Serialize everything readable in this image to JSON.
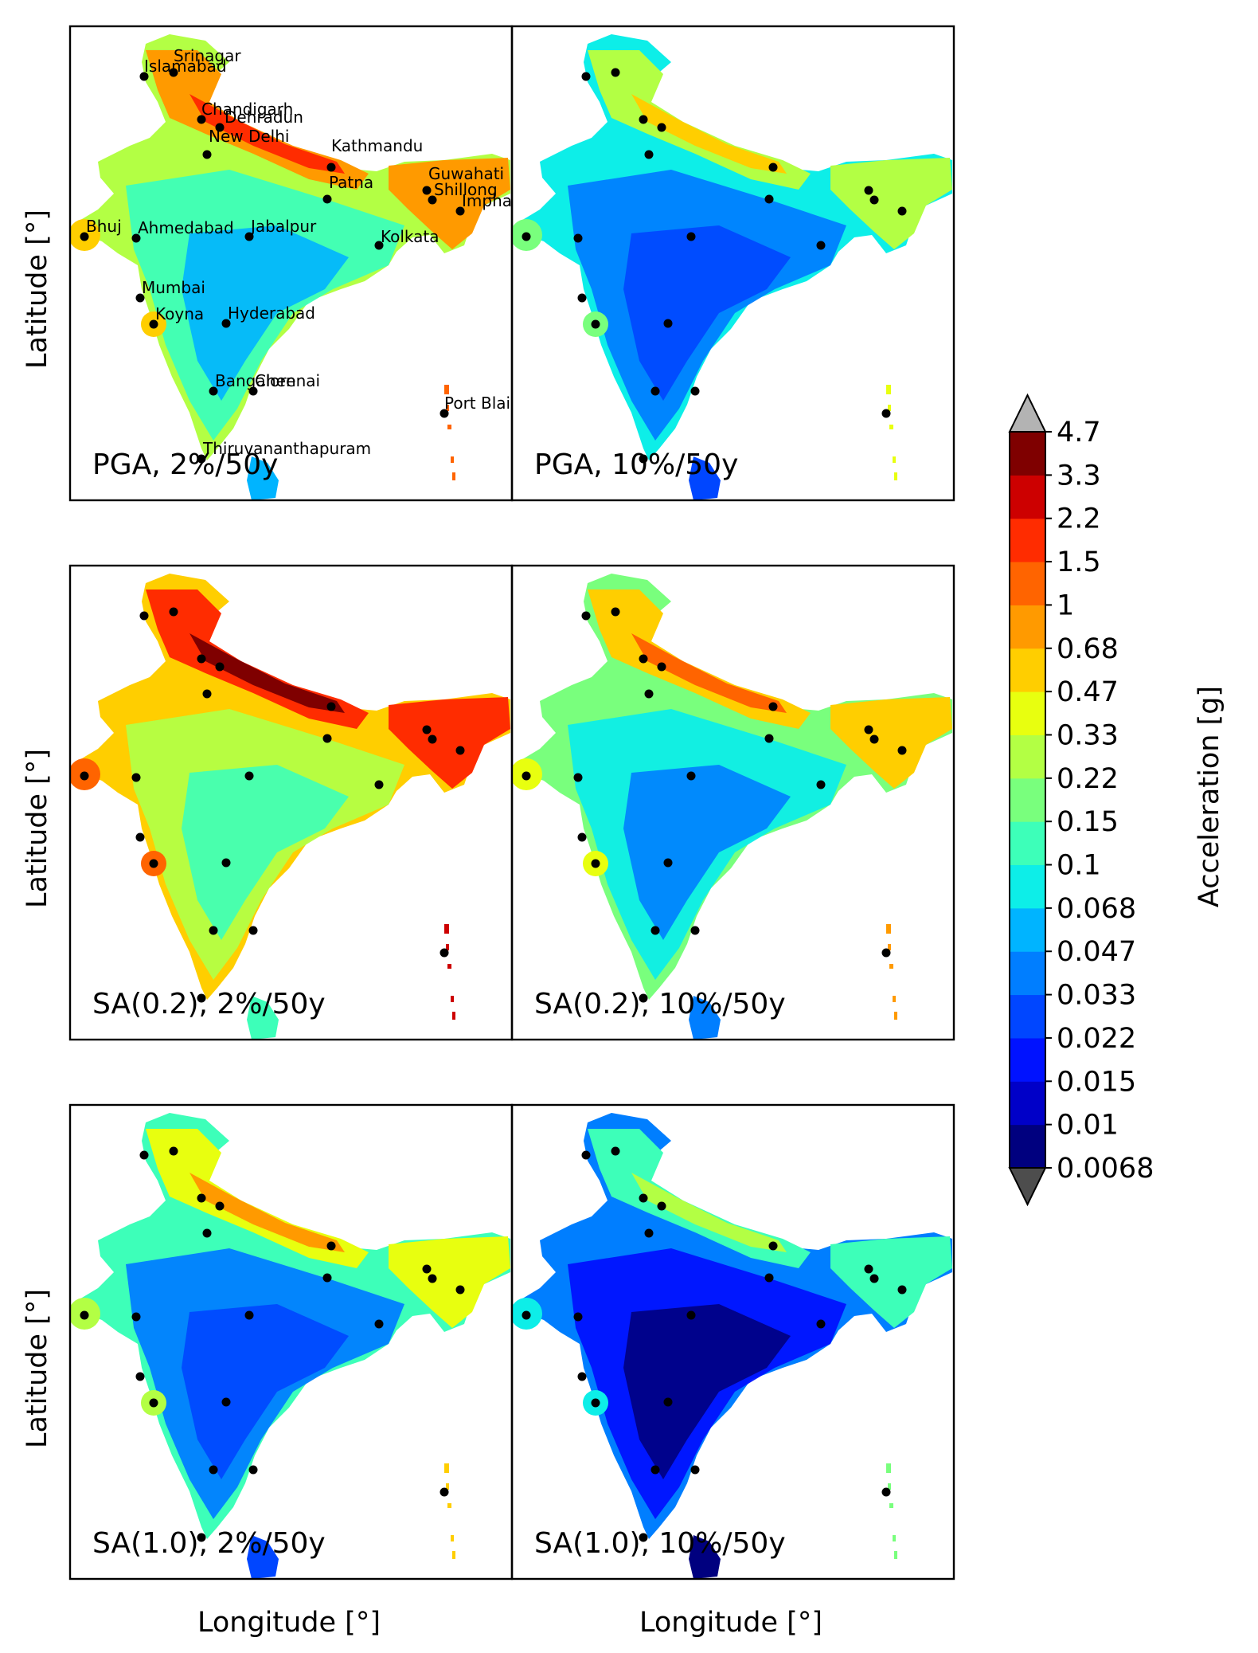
{
  "chart_data": {
    "type": "heatmap",
    "description_scale": "discrete",
    "xlabel": "Longitude [°]",
    "ylabel": "Latitude [°]",
    "colorbar": {
      "label": "Acceleration [g]",
      "levels": [
        "0.0068",
        "0.01",
        "0.015",
        "0.022",
        "0.033",
        "0.047",
        "0.068",
        "0.1",
        "0.15",
        "0.22",
        "0.33",
        "0.47",
        "0.68",
        "1",
        "1.5",
        "2.2",
        "3.3",
        "4.7"
      ],
      "colors": [
        "#00007f",
        "#0000c8",
        "#0012ff",
        "#0046ff",
        "#007eff",
        "#00b4ff",
        "#0deee8",
        "#3dffb9",
        "#79ff7d",
        "#b3ff44",
        "#e8ff0f",
        "#ffce00",
        "#ff9a00",
        "#ff6400",
        "#ff2c00",
        "#cd0000",
        "#7f0000"
      ],
      "under_color": "#4d4d4d",
      "over_color": "#b3b3b3",
      "extend": "both"
    },
    "panels": [
      {
        "label": "PGA, 2%/50y",
        "row": 0,
        "col": 0,
        "level": 0.55
      },
      {
        "label": "PGA, 10%/50y",
        "row": 0,
        "col": 1,
        "level": 0.38
      },
      {
        "label": "SA(0.2), 2%/50y",
        "row": 1,
        "col": 0,
        "level": 0.68
      },
      {
        "label": "SA(0.2), 10%/50y",
        "row": 1,
        "col": 1,
        "level": 0.5
      },
      {
        "label": "SA(1.0), 2%/50y",
        "row": 2,
        "col": 0,
        "level": 0.42
      },
      {
        "label": "SA(1.0), 10%/50y",
        "row": 2,
        "col": 1,
        "level": 0.24
      }
    ],
    "cities": [
      "Srinagar",
      "Islamabad",
      "Chandigarh",
      "Dehradun",
      "New Delhi",
      "Kathmandu",
      "Guwahati",
      "Shillong",
      "Imphal",
      "Patna",
      "Bhuj",
      "Ahmedabad",
      "Jabalpur",
      "Kolkata",
      "Mumbai",
      "Koyna",
      "Hyderabad",
      "Bangalore",
      "Chennai",
      "Port Blair",
      "Thiruvananthapuram"
    ]
  }
}
